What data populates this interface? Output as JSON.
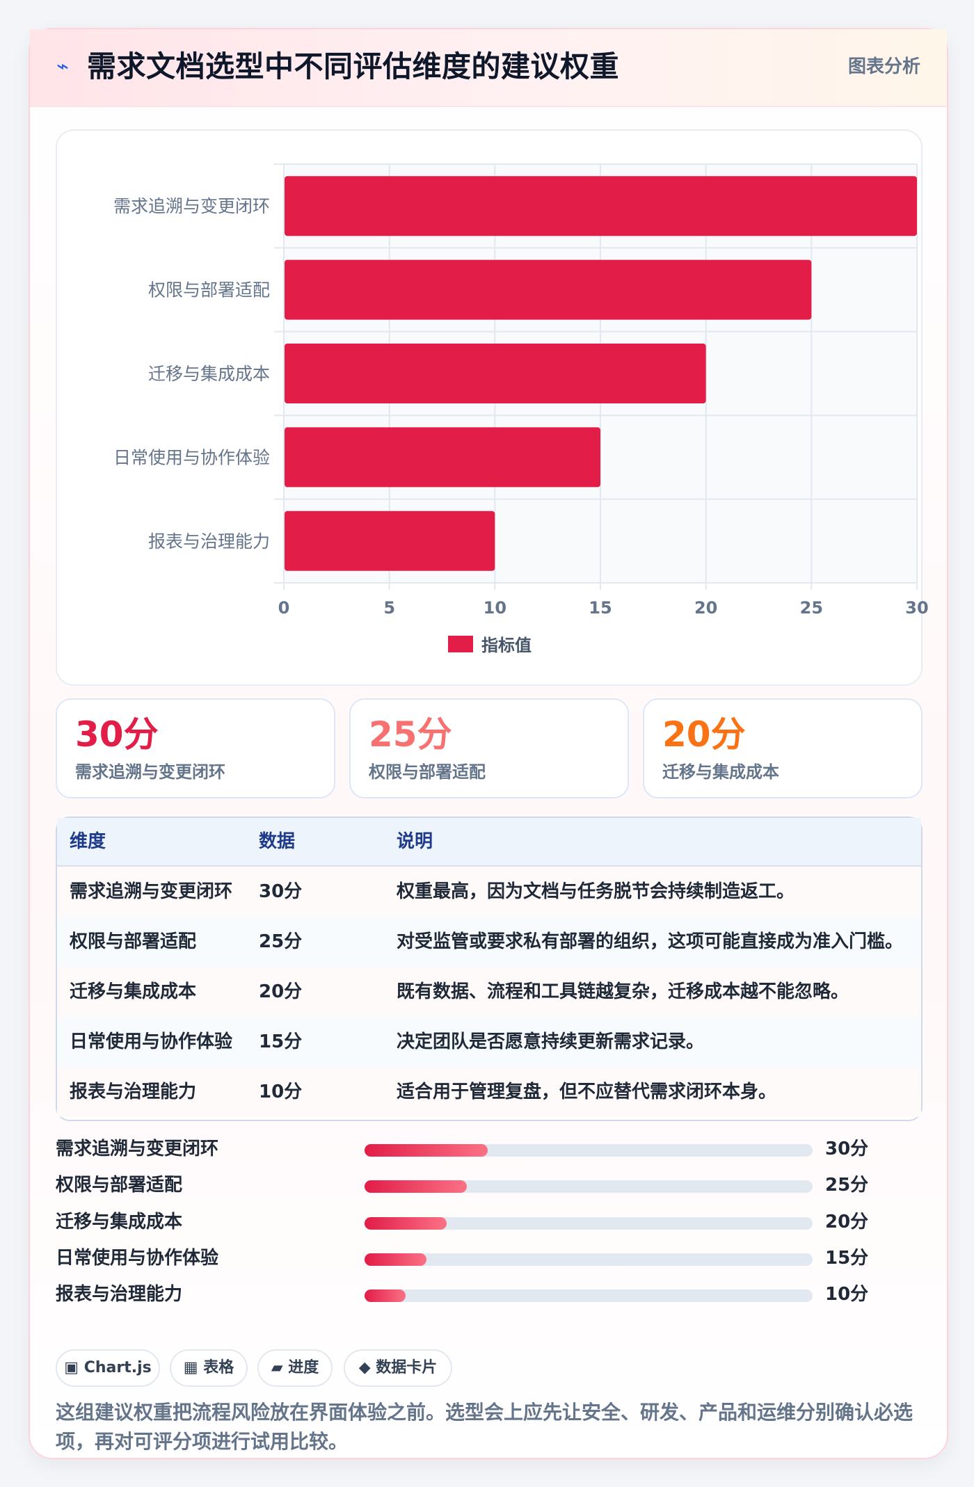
{
  "header": {
    "icon": "bolt-icon",
    "title": "需求文档选型中不同评估维度的建议权重",
    "badge": "图表分析"
  },
  "colors": {
    "bar": "#e11d48",
    "stat_1": "#e11d48",
    "stat_2": "#f87171",
    "stat_3": "#f97316"
  },
  "chart_data": {
    "type": "bar",
    "orientation": "horizontal",
    "categories": [
      "需求追溯与变更闭环",
      "权限与部署适配",
      "迁移与集成成本",
      "日常使用与协作体验",
      "报表与治理能力"
    ],
    "series": [
      {
        "name": "指标值",
        "values": [
          30,
          25,
          20,
          15,
          10
        ]
      }
    ],
    "xlim": [
      0,
      30
    ],
    "xticks": [
      "0",
      "5",
      "10",
      "15",
      "20",
      "25",
      "30"
    ],
    "grid": true,
    "legend": "bottom"
  },
  "stats": [
    {
      "value": "30分",
      "label": "需求追溯与变更闭环"
    },
    {
      "value": "25分",
      "label": "权限与部署适配"
    },
    {
      "value": "20分",
      "label": "迁移与集成成本"
    }
  ],
  "table": {
    "headers": [
      "维度",
      "数据",
      "说明"
    ],
    "rows": [
      [
        "需求追溯与变更闭环",
        "30分",
        "权重最高，因为文档与任务脱节会持续制造返工。"
      ],
      [
        "权限与部署适配",
        "25分",
        "对受监管或要求私有部署的组织，这项可能直接成为准入门槛。"
      ],
      [
        "迁移与集成成本",
        "20分",
        "既有数据、流程和工具链越复杂，迁移成本越不能忽略。"
      ],
      [
        "日常使用与协作体验",
        "15分",
        "决定团队是否愿意持续更新需求记录。"
      ],
      [
        "报表与治理能力",
        "10分",
        "适合用于管理复盘，但不应替代需求闭环本身。"
      ]
    ]
  },
  "progress": [
    {
      "label": "需求追溯与变更闭环",
      "value_text": "30分",
      "fraction": 0.275
    },
    {
      "label": "权限与部署适配",
      "value_text": "25分",
      "fraction": 0.229
    },
    {
      "label": "迁移与集成成本",
      "value_text": "20分",
      "fraction": 0.183
    },
    {
      "label": "日常使用与协作体验",
      "value_text": "15分",
      "fraction": 0.138
    },
    {
      "label": "报表与治理能力",
      "value_text": "10分",
      "fraction": 0.092
    }
  ],
  "chips": [
    {
      "icon": "square-icon",
      "glyph": "▣",
      "label": "Chart.js"
    },
    {
      "icon": "grid-icon",
      "glyph": "▦",
      "label": "表格"
    },
    {
      "icon": "parallelogram-icon",
      "glyph": "▰",
      "label": "进度"
    },
    {
      "icon": "diamond-icon",
      "glyph": "◆",
      "label": "数据卡片"
    }
  ],
  "summary": "这组建议权重把流程风险放在界面体验之前。选型会上应先让安全、研发、产品和运维分别确认必选项，再对可评分项进行试用比较。"
}
